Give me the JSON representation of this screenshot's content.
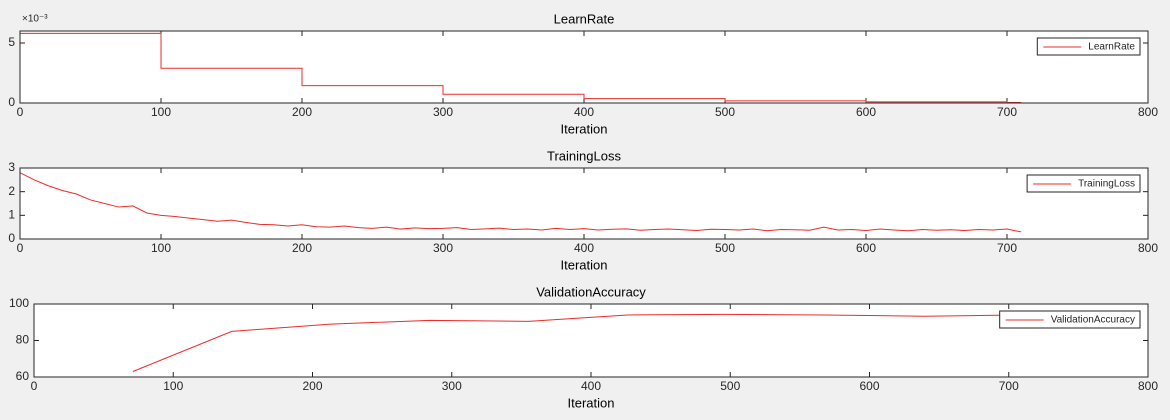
{
  "chart_data": [
    {
      "type": "line",
      "title": "LearnRate",
      "x_label": "Iteration",
      "y_multiplier": "×10⁻³",
      "x": [
        0,
        100,
        100,
        200,
        200,
        300,
        300,
        400,
        400,
        500,
        500,
        600,
        600,
        700,
        700,
        710
      ],
      "series": [
        {
          "name": "LearnRate",
          "color": "#ee2b2b",
          "values": [
            0.0058,
            0.0058,
            0.0029,
            0.0029,
            0.00145,
            0.00145,
            0.000725,
            0.000725,
            0.0003625,
            0.0003625,
            0.00018125,
            0.00018125,
            9.06e-05,
            9.06e-05,
            4.53e-05,
            4.53e-05
          ]
        }
      ],
      "xlim": [
        0,
        800
      ],
      "xticks": [
        0,
        100,
        200,
        300,
        400,
        500,
        600,
        700,
        800
      ],
      "ylim": [
        0,
        0.006
      ],
      "yticks": [
        0,
        {
          "value": 0.005,
          "label": "5"
        }
      ],
      "legend": "upper right"
    },
    {
      "type": "line",
      "title": "TrainingLoss",
      "x_label": "Iteration",
      "x": [
        0,
        10,
        20,
        30,
        40,
        50,
        60,
        70,
        80,
        90,
        100,
        110,
        120,
        130,
        140,
        150,
        160,
        170,
        180,
        190,
        200,
        210,
        220,
        230,
        240,
        250,
        260,
        270,
        280,
        290,
        300,
        310,
        320,
        330,
        340,
        350,
        360,
        370,
        380,
        390,
        400,
        410,
        420,
        430,
        440,
        450,
        460,
        470,
        480,
        490,
        500,
        510,
        520,
        530,
        540,
        550,
        560,
        570,
        580,
        590,
        600,
        610,
        620,
        630,
        640,
        650,
        660,
        670,
        680,
        690,
        700,
        710
      ],
      "series": [
        {
          "name": "TrainingLoss",
          "color": "#ee2b2b",
          "values": [
            2.8,
            2.5,
            2.25,
            2.05,
            1.9,
            1.65,
            1.5,
            1.35,
            1.4,
            1.1,
            1.0,
            0.95,
            0.88,
            0.82,
            0.75,
            0.8,
            0.7,
            0.62,
            0.6,
            0.55,
            0.6,
            0.52,
            0.5,
            0.55,
            0.48,
            0.45,
            0.5,
            0.42,
            0.47,
            0.44,
            0.45,
            0.48,
            0.4,
            0.43,
            0.46,
            0.4,
            0.42,
            0.38,
            0.45,
            0.4,
            0.44,
            0.38,
            0.41,
            0.43,
            0.37,
            0.4,
            0.42,
            0.39,
            0.36,
            0.41,
            0.4,
            0.38,
            0.42,
            0.35,
            0.4,
            0.39,
            0.37,
            0.5,
            0.38,
            0.4,
            0.36,
            0.42,
            0.38,
            0.35,
            0.4,
            0.37,
            0.39,
            0.36,
            0.4,
            0.38,
            0.42,
            0.3
          ]
        }
      ],
      "xlim": [
        0,
        800
      ],
      "xticks": [
        0,
        100,
        200,
        300,
        400,
        500,
        600,
        700,
        800
      ],
      "ylim": [
        0,
        3
      ],
      "yticks": [
        0,
        1,
        2,
        3
      ],
      "legend": "upper right"
    },
    {
      "type": "line",
      "title": "ValidationAccuracy",
      "x_label": "Iteration",
      "x": [
        71,
        142,
        213,
        284,
        355,
        426,
        497,
        568,
        639,
        710
      ],
      "series": [
        {
          "name": "ValidationAccuracy",
          "color": "#ee2b2b",
          "values": [
            63,
            85,
            89,
            91,
            90.5,
            94,
            94.3,
            94,
            93.3,
            94
          ]
        }
      ],
      "xlim": [
        0,
        800
      ],
      "xticks": [
        0,
        100,
        200,
        300,
        400,
        500,
        600,
        700,
        800
      ],
      "ylim": [
        60,
        100
      ],
      "yticks": [
        60,
        80,
        100
      ],
      "legend": "upper right"
    }
  ]
}
